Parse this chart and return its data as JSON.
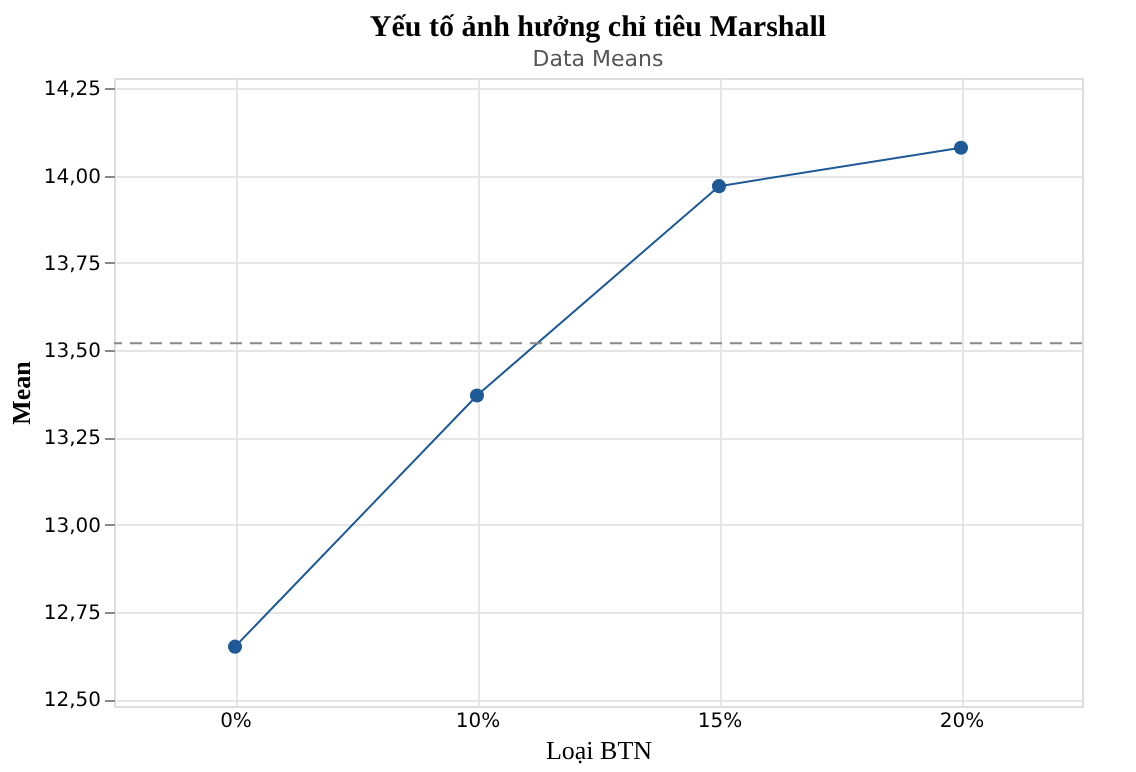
{
  "chart_data": {
    "type": "line",
    "title": "Yếu tố ảnh hưởng chỉ tiêu Marshall",
    "subtitle": "Data Means",
    "xlabel": "Loại BTN",
    "ylabel": "Mean",
    "categories": [
      "0%",
      "10%",
      "15%",
      "20%"
    ],
    "series": [
      {
        "color": "#1f5a96",
        "values": [
          12.65,
          13.37,
          13.97,
          14.08
        ]
      }
    ],
    "ylim": [
      12.48,
      14.28
    ],
    "yticks": [
      {
        "value": 12.5,
        "label": "12,50"
      },
      {
        "value": 12.75,
        "label": "12,75"
      },
      {
        "value": 13.0,
        "label": "13,00"
      },
      {
        "value": 13.25,
        "label": "13,25"
      },
      {
        "value": 13.5,
        "label": "13,50"
      },
      {
        "value": 13.75,
        "label": "13,75"
      },
      {
        "value": 14.0,
        "label": "14,00"
      },
      {
        "value": 14.25,
        "label": "14,25"
      }
    ],
    "ref_lines": [
      {
        "axis": "y",
        "value": 13.52,
        "color": "#888888",
        "line_style": "dashed"
      }
    ],
    "grid": true,
    "marker": "circle",
    "line_style": "solid"
  }
}
